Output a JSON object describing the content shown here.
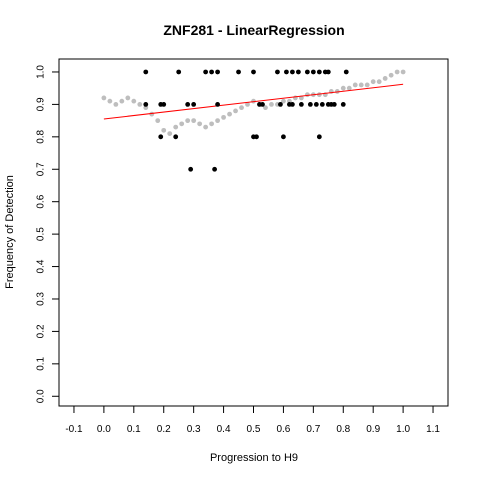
{
  "chart_data": {
    "type": "scatter",
    "title": "ZNF281 - LinearRegression",
    "xlabel": "Progression to H9",
    "ylabel": "Frequency of Detection",
    "xlim": [
      -0.15,
      1.15
    ],
    "ylim": [
      -0.03,
      1.04
    ],
    "x_ticks": [
      -0.1,
      0.0,
      0.1,
      0.2,
      0.3,
      0.4,
      0.5,
      0.6,
      0.7,
      0.8,
      0.9,
      1.0,
      1.1
    ],
    "x_tick_labels": [
      "-0.1",
      "0.0",
      "0.1",
      "0.2",
      "0.3",
      "0.4",
      "0.5",
      "0.6",
      "0.7",
      "0.8",
      "0.9",
      "1.0",
      "1.1"
    ],
    "y_ticks": [
      0.0,
      0.1,
      0.2,
      0.3,
      0.4,
      0.5,
      0.6,
      0.7,
      0.8,
      0.9,
      1.0
    ],
    "y_tick_labels": [
      "0.0",
      "0.1",
      "0.2",
      "0.3",
      "0.4",
      "0.5",
      "0.6",
      "0.7",
      "0.8",
      "0.9",
      "1.0"
    ],
    "grid": false,
    "colors": {
      "points": "#000000",
      "smooth": "#bebebe",
      "regression": "#ff0000"
    },
    "series": [
      {
        "kind": "points",
        "x": [
          0.14,
          0.14,
          0.19,
          0.19,
          0.2,
          0.24,
          0.25,
          0.28,
          0.29,
          0.3,
          0.34,
          0.36,
          0.37,
          0.38,
          0.38,
          0.45,
          0.5,
          0.5,
          0.51,
          0.52,
          0.53,
          0.58,
          0.59,
          0.6,
          0.61,
          0.62,
          0.63,
          0.63,
          0.65,
          0.66,
          0.68,
          0.69,
          0.7,
          0.71,
          0.72,
          0.72,
          0.73,
          0.74,
          0.75,
          0.75,
          0.76,
          0.77,
          0.8,
          0.81
        ],
        "y": [
          1.0,
          0.9,
          0.9,
          0.8,
          0.9,
          0.8,
          1.0,
          0.9,
          0.7,
          0.9,
          1.0,
          1.0,
          0.7,
          1.0,
          0.9,
          1.0,
          1.0,
          0.8,
          0.8,
          0.9,
          0.9,
          1.0,
          0.9,
          0.8,
          1.0,
          0.9,
          1.0,
          0.9,
          1.0,
          0.9,
          1.0,
          0.9,
          1.0,
          0.9,
          0.8,
          1.0,
          0.9,
          1.0,
          0.9,
          1.0,
          0.9,
          0.9,
          0.9,
          1.0
        ]
      },
      {
        "kind": "smooth",
        "x": [
          0.0,
          0.02,
          0.04,
          0.06,
          0.08,
          0.1,
          0.12,
          0.14,
          0.16,
          0.18,
          0.2,
          0.22,
          0.24,
          0.26,
          0.28,
          0.3,
          0.32,
          0.34,
          0.36,
          0.38,
          0.4,
          0.42,
          0.44,
          0.46,
          0.48,
          0.5,
          0.52,
          0.54,
          0.56,
          0.58,
          0.6,
          0.62,
          0.64,
          0.66,
          0.68,
          0.7,
          0.72,
          0.74,
          0.76,
          0.78,
          0.8,
          0.82,
          0.84,
          0.86,
          0.88,
          0.9,
          0.92,
          0.94,
          0.96,
          0.98,
          1.0
        ],
        "y": [
          0.92,
          0.91,
          0.9,
          0.91,
          0.92,
          0.91,
          0.9,
          0.89,
          0.87,
          0.85,
          0.82,
          0.81,
          0.83,
          0.84,
          0.85,
          0.85,
          0.84,
          0.83,
          0.84,
          0.85,
          0.86,
          0.87,
          0.88,
          0.89,
          0.9,
          0.91,
          0.9,
          0.89,
          0.9,
          0.9,
          0.91,
          0.91,
          0.92,
          0.92,
          0.93,
          0.93,
          0.93,
          0.93,
          0.94,
          0.94,
          0.95,
          0.95,
          0.96,
          0.96,
          0.96,
          0.97,
          0.97,
          0.98,
          0.99,
          1.0,
          1.0
        ]
      },
      {
        "kind": "regression",
        "x": [
          0.0,
          1.0
        ],
        "y": [
          0.855,
          0.962
        ]
      }
    ]
  }
}
